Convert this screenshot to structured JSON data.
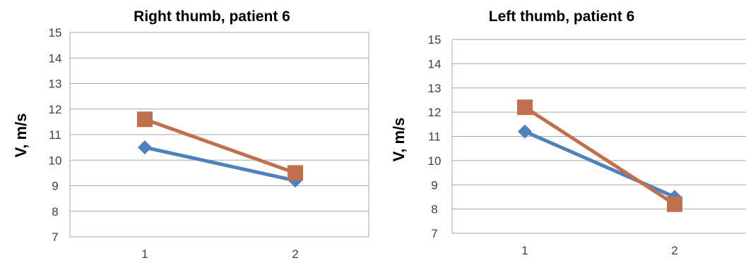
{
  "chart_data": [
    {
      "type": "line",
      "title": "Right thumb, patient 6",
      "xlabel": "",
      "ylabel": "V, m/s",
      "categories": [
        "1",
        "2"
      ],
      "ylim": [
        7,
        15
      ],
      "yticks": [
        "7",
        "8",
        "9",
        "10",
        "11",
        "12",
        "13",
        "14",
        "15"
      ],
      "grid": true,
      "series": [
        {
          "color": "#4f81bd",
          "marker": "diamond",
          "values": [
            10.5,
            9.2
          ]
        },
        {
          "color": "#c0704f",
          "marker": "square",
          "values": [
            11.6,
            9.5
          ]
        }
      ]
    },
    {
      "type": "line",
      "title": "Left thumb, patient 6",
      "xlabel": "",
      "ylabel": "V, m/s",
      "categories": [
        "1",
        "2"
      ],
      "ylim": [
        7,
        15
      ],
      "yticks": [
        "7",
        "8",
        "9",
        "10",
        "11",
        "12",
        "13",
        "14",
        "15"
      ],
      "grid": true,
      "series": [
        {
          "color": "#4f81bd",
          "marker": "diamond",
          "values": [
            11.2,
            8.5
          ]
        },
        {
          "color": "#c0704f",
          "marker": "square",
          "values": [
            12.2,
            8.2
          ]
        }
      ]
    }
  ]
}
